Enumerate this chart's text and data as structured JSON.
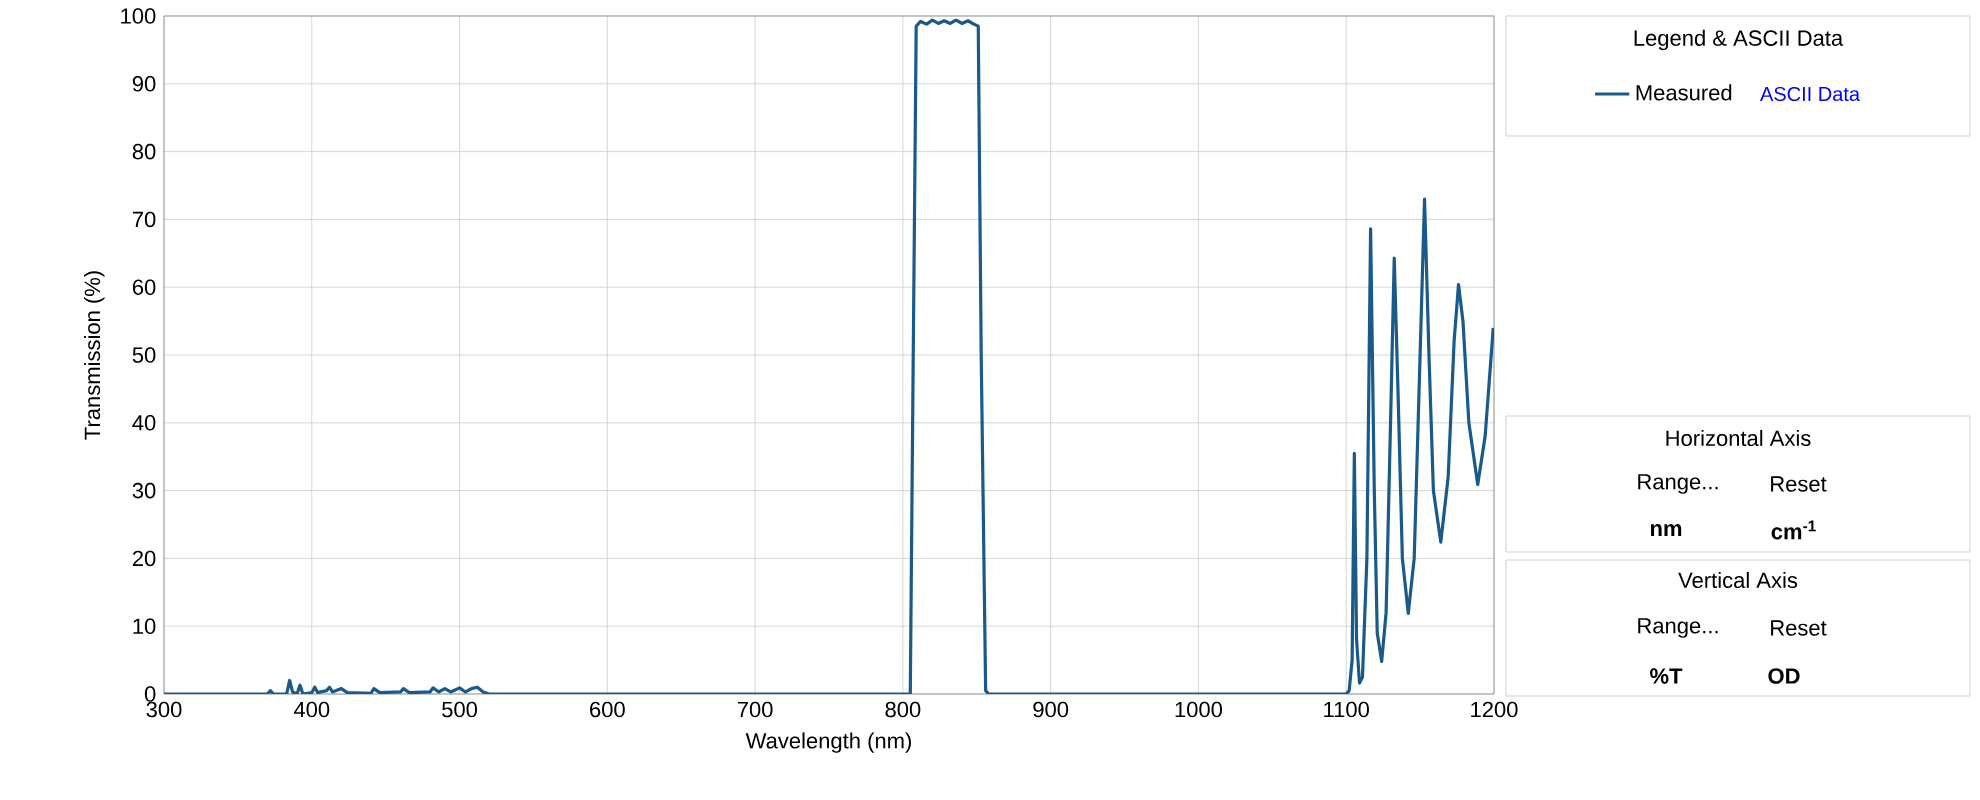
{
  "chart_data": {
    "type": "line",
    "xlabel": "Wavelength (nm)",
    "ylabel": "Transmission (%)",
    "legend_title": "Legend & ASCII Data",
    "series": [
      {
        "name": "Measured",
        "color": "#1a5a8a",
        "x": [
          300,
          370,
          372,
          374,
          383,
          385,
          387,
          390,
          392,
          394,
          400,
          402,
          404,
          410,
          412,
          414,
          420,
          424,
          440,
          442,
          446,
          460,
          462,
          466,
          480,
          482,
          486,
          490,
          494,
          500,
          504,
          508,
          512,
          516,
          520,
          800,
          805,
          807,
          809,
          812,
          816,
          820,
          824,
          828,
          832,
          836,
          840,
          844,
          848,
          851,
          853,
          856,
          858,
          1100,
          1102,
          1104,
          1105.5,
          1107,
          1109,
          1111,
          1114,
          1116.5,
          1119,
          1121,
          1124,
          1127,
          1130,
          1132.5,
          1135,
          1138,
          1142,
          1146,
          1150,
          1153,
          1156,
          1159,
          1164,
          1169,
          1173,
          1176,
          1179,
          1183,
          1189,
          1194,
          1199.5
        ],
        "values": [
          0,
          0,
          0.5,
          0,
          0,
          2,
          0.3,
          0,
          1.3,
          0,
          0.2,
          1,
          0.2,
          0.5,
          1,
          0.3,
          0.8,
          0.2,
          0.1,
          0.8,
          0.2,
          0.3,
          0.8,
          0.2,
          0.3,
          0.9,
          0.3,
          0.8,
          0.3,
          0.9,
          0.3,
          0.8,
          1,
          0.3,
          0,
          0,
          0,
          50,
          98.5,
          99.2,
          98.8,
          99.4,
          98.9,
          99.3,
          98.9,
          99.4,
          98.9,
          99.3,
          98.8,
          98.5,
          50,
          0.5,
          0,
          0,
          0.5,
          5,
          35.5,
          8,
          1.6,
          2.5,
          20,
          68.6,
          30,
          9,
          4.8,
          12,
          40,
          64.3,
          45,
          20,
          11.9,
          20,
          50,
          73,
          50,
          30,
          22.4,
          32,
          52,
          60.4,
          55,
          40,
          30.9,
          38,
          54
        ]
      }
    ],
    "xlim": [
      300,
      1200
    ],
    "ylim": [
      0,
      100
    ],
    "xticks": [
      300,
      400,
      500,
      600,
      700,
      800,
      900,
      1000,
      1100,
      1200
    ],
    "yticks": [
      0,
      10,
      20,
      30,
      40,
      50,
      60,
      70,
      80,
      90,
      100
    ],
    "grid": true,
    "legend": "top right",
    "marker": "none",
    "line_style": "solid",
    "annotations": [
      "ASCII Data",
      "Horizontal Axis",
      "Range...",
      "Reset",
      "nm",
      "cm$^{-1}$",
      "Vertical Axis",
      "Range...",
      "Reset",
      "%T",
      "OD"
    ]
  }
}
